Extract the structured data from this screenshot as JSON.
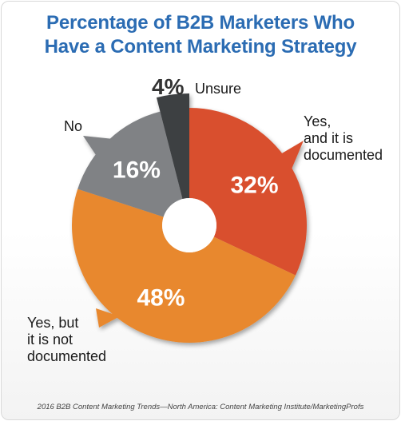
{
  "chart_data": {
    "type": "pie",
    "title": [
      "Percentage of B2B Marketers Who",
      "Have a Content Marketing Strategy"
    ],
    "slices": [
      {
        "label": "Yes, and it is documented",
        "label_lines": [
          "Yes,",
          "and it is",
          "documented"
        ],
        "value": 32,
        "display": "32%",
        "color": "#d9502e"
      },
      {
        "label": "Yes, but it is not documented",
        "label_lines": [
          "Yes, but",
          "it is not",
          "documented"
        ],
        "value": 48,
        "display": "48%",
        "color": "#e8882f"
      },
      {
        "label": "No",
        "label_lines": [
          "No"
        ],
        "value": 16,
        "display": "16%",
        "color": "#808285"
      },
      {
        "label": "Unsure",
        "label_lines": [
          "Unsure"
        ],
        "value": 4,
        "display": "4%",
        "color": "#3d3f43"
      }
    ],
    "source": "2016 B2B Content Marketing Trends—North America: Content Marketing Institute/MarketingProfs"
  }
}
